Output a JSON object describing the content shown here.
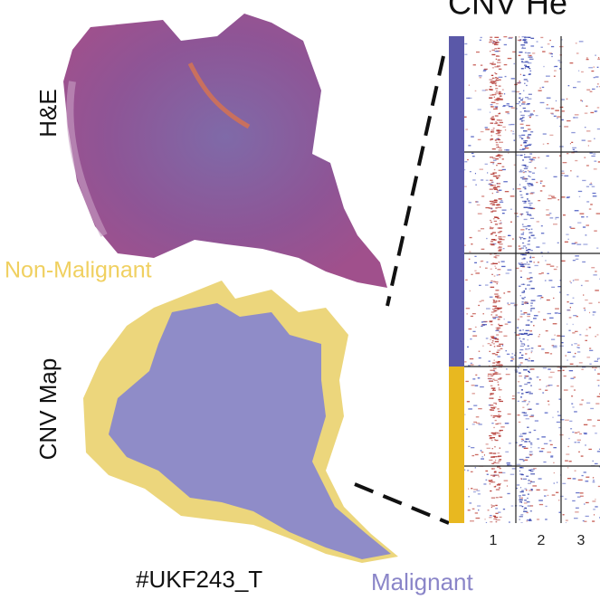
{
  "heatmap_title": "CNV He",
  "he_label": "H&E",
  "non_malignant_label": "Non-Malignant",
  "cnv_map_label": "CNV Map",
  "sample_label": "#UKF243_T",
  "malignant_label": "Malignant",
  "chromosome_labels": [
    "1",
    "2",
    "3"
  ]
}
